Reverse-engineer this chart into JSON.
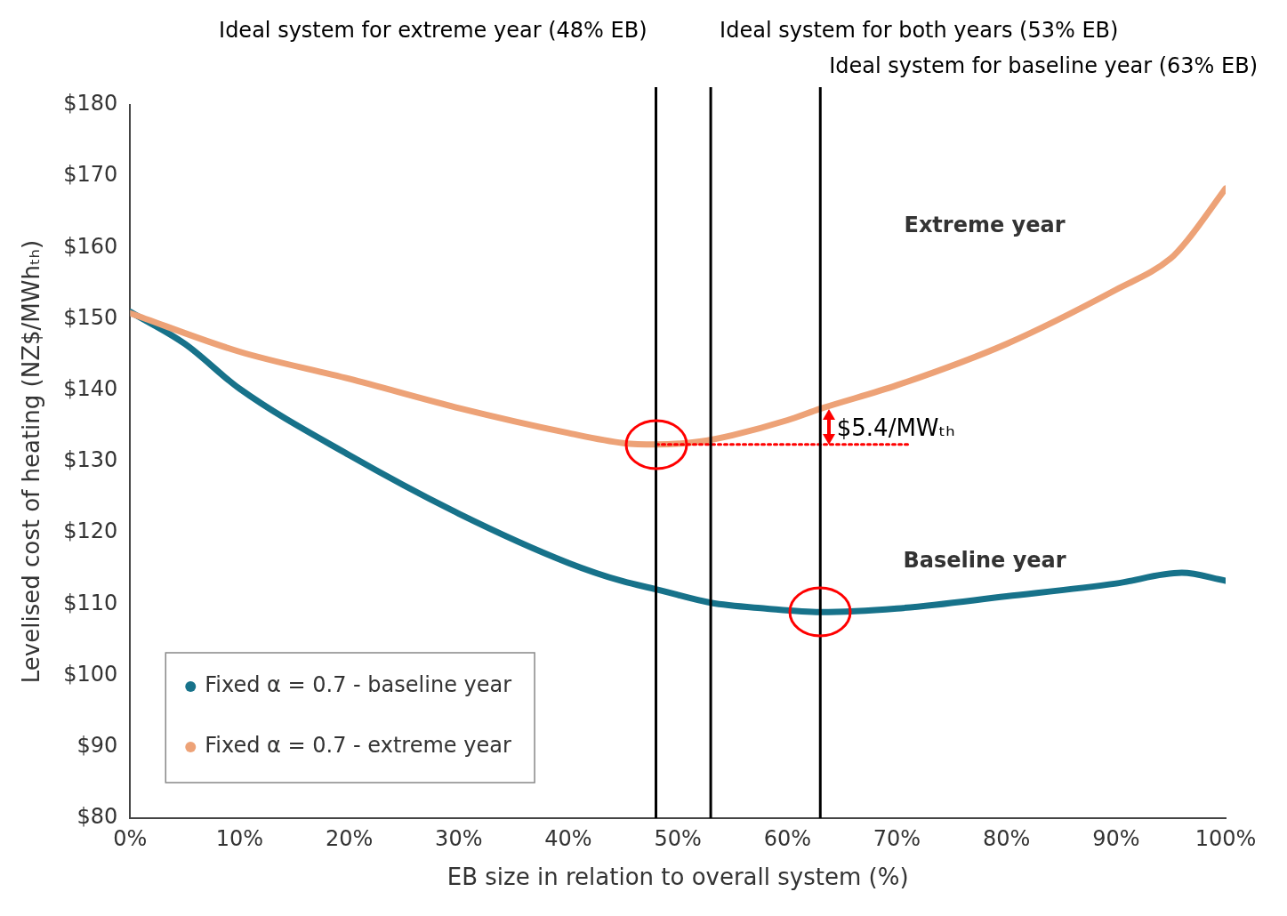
{
  "chart_data": {
    "type": "line",
    "xlabel": "EB size in relation to overall system (%)",
    "ylabel": "Levelised cost of heating (NZ$/MWhₜₕ)",
    "xlim": [
      0,
      100
    ],
    "xticks": [
      {
        "value": 0,
        "label": "0%"
      },
      {
        "value": 10,
        "label": "10%"
      },
      {
        "value": 20,
        "label": "20%"
      },
      {
        "value": 30,
        "label": "30%"
      },
      {
        "value": 40,
        "label": "40%"
      },
      {
        "value": 50,
        "label": "50%"
      },
      {
        "value": 60,
        "label": "60%"
      },
      {
        "value": 70,
        "label": "70%"
      },
      {
        "value": 80,
        "label": "80%"
      },
      {
        "value": 90,
        "label": "90%"
      },
      {
        "value": 100,
        "label": "100%"
      }
    ],
    "ylim": [
      80,
      180
    ],
    "yticks": [
      {
        "value": 80,
        "label": "$80"
      },
      {
        "value": 90,
        "label": "$90"
      },
      {
        "value": 100,
        "label": "$100"
      },
      {
        "value": 110,
        "label": "$110"
      },
      {
        "value": 120,
        "label": "$120"
      },
      {
        "value": 130,
        "label": "$130"
      },
      {
        "value": 140,
        "label": "$140"
      },
      {
        "value": 150,
        "label": "$150"
      },
      {
        "value": 160,
        "label": "$160"
      },
      {
        "value": 170,
        "label": "$170"
      },
      {
        "value": 180,
        "label": "$180"
      }
    ],
    "grid": false,
    "legend": "bottom left",
    "marker": "none",
    "series": [
      {
        "name": "Fixed α = 0.7 - baseline year",
        "color": "#17728a",
        "x": [
          0,
          5,
          10,
          20,
          30,
          40,
          45,
          48,
          53,
          58,
          63,
          70,
          80,
          90,
          96,
          100
        ],
        "values": [
          151,
          146.5,
          140.2,
          130.9,
          122.7,
          115.8,
          113.2,
          112.1,
          110.2,
          109.4,
          108.9,
          109.4,
          111.1,
          112.9,
          114.4,
          113.3
        ]
      },
      {
        "name": "Fixed α = 0.7 - extreme year",
        "color": "#eda277",
        "x": [
          0,
          10,
          20,
          30,
          40,
          45,
          48,
          52,
          55,
          60,
          63,
          70,
          80,
          90,
          95,
          96.5,
          100
        ],
        "values": [
          150.8,
          145.4,
          141.6,
          137.5,
          134,
          132.6,
          132.4,
          132.8,
          133.7,
          135.8,
          137.4,
          140.7,
          146.5,
          154.1,
          158.5,
          161,
          168.3
        ]
      },
      {
        "color": "#ff0000",
        "line_style": "dotted",
        "x": [
          48,
          71
        ],
        "values": [
          132.4,
          132.4
        ]
      }
    ],
    "ref_lines": [
      {
        "axis": "x",
        "value": 48,
        "label": "Ideal system for extreme year (48% EB)",
        "color": "#000000"
      },
      {
        "axis": "x",
        "value": 53,
        "label": "Ideal system for both years (53% EB)",
        "color": "#000000"
      },
      {
        "axis": "x",
        "value": 63,
        "label": "Ideal system for baseline year (63% EB)",
        "color": "#000000"
      }
    ],
    "annotations": [
      "Extreme year",
      "Baseline year",
      "$5.4/MWₜₕ"
    ]
  }
}
